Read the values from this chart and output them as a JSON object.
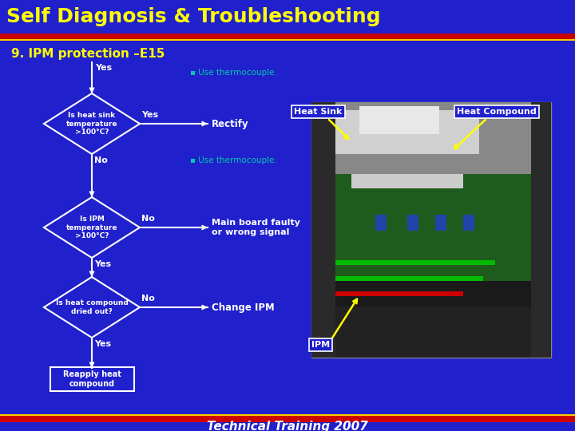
{
  "bg_color": "#2020cc",
  "title": "Self Diagnosis & Troubleshooting",
  "title_color": "#ffff00",
  "header_bar_color": "#cc0000",
  "subtitle": "9. IPM protection –E15",
  "subtitle_color": "#ffff00",
  "footer_text": "Technical Training 2007",
  "footer_color": "#ffffff",
  "diamond1_text": "Is heat sink\ntemperature\n>100°C?",
  "diamond2_text": "Is IPM\ntemperature\n>100°C?",
  "diamond3_text": "Is heat compound\ndried out?",
  "rect_text": "Reapply heat\ncompound",
  "action_rectify": "Rectify",
  "action_thermocouple1": "▪ Use thermocouple.",
  "action_thermocouple2": "▪ Use thermocouple.",
  "action_mainboard": "Main board faulty\nor wrong signal",
  "action_change_ipm": "Change IPM",
  "label_heat_sink": "Heat Sink",
  "label_heat_compound": "Heat Compound",
  "label_ipm": "IPM",
  "diamond_edge": "#ffffff",
  "diamond_fill": "#2020cc",
  "rect_fill": "#2020cc",
  "rect_edge": "#ffffff",
  "text_white": "#ffffff",
  "text_cyan": "#00ccaa",
  "arrow_color": "#ffffff",
  "yellow_arrow": "#ffff00"
}
